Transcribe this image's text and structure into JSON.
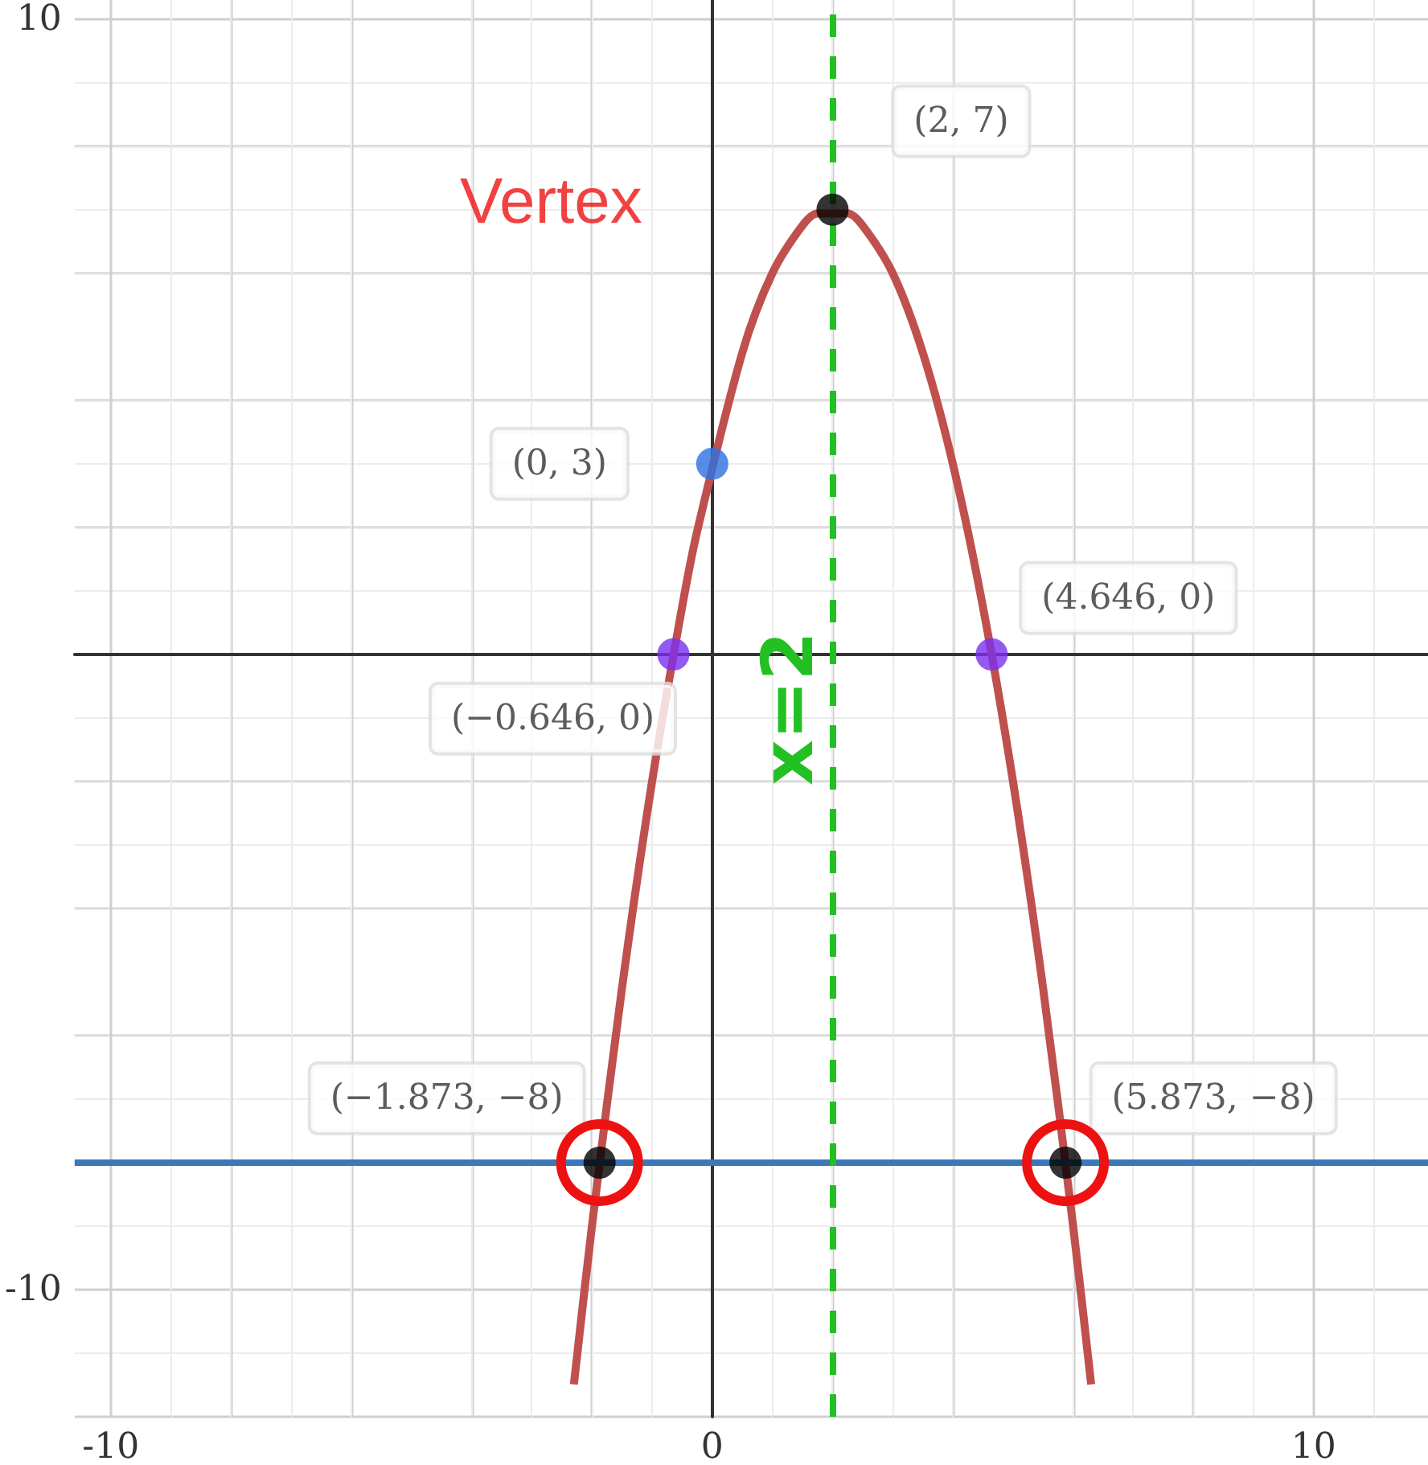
{
  "chart_data": {
    "type": "line",
    "xlim": [
      -10.6,
      11.9
    ],
    "ylim": [
      -12,
      10.3
    ],
    "xticks": [
      {
        "value": -10,
        "label": "-10"
      },
      {
        "value": -8,
        "label": null
      },
      {
        "value": -6,
        "label": null
      },
      {
        "value": -4,
        "label": null
      },
      {
        "value": -2,
        "label": null
      },
      {
        "value": 0,
        "label": "0"
      },
      {
        "value": 2,
        "label": null
      },
      {
        "value": 4,
        "label": null
      },
      {
        "value": 6,
        "label": null
      },
      {
        "value": 8,
        "label": null
      },
      {
        "value": 10,
        "label": "10"
      }
    ],
    "yticks": [
      {
        "value": -12,
        "label": null
      },
      {
        "value": -10,
        "label": "-10"
      },
      {
        "value": -8,
        "label": null
      },
      {
        "value": -6,
        "label": null
      },
      {
        "value": -4,
        "label": null
      },
      {
        "value": -2,
        "label": null
      },
      {
        "value": 0,
        "label": null
      },
      {
        "value": 2,
        "label": null
      },
      {
        "value": 4,
        "label": null
      },
      {
        "value": 6,
        "label": null
      },
      {
        "value": 8,
        "label": null
      },
      {
        "value": 10,
        "label": "10"
      }
    ],
    "grid": true,
    "series": [
      {
        "color": "#c0504d",
        "marker": "none",
        "x": [
          -2.3,
          -2,
          -1.5,
          -1,
          -0.5,
          -0.25,
          0.5,
          1,
          1.5,
          1.75,
          2.25,
          2.5,
          3,
          3.5,
          4,
          4.5,
          5,
          5.5,
          6,
          6.3
        ],
        "values": [
          -11.49,
          -9,
          -5.25,
          -2,
          0.75,
          1.94,
          4.75,
          6,
          6.75,
          6.94,
          6.94,
          6.75,
          6,
          4.75,
          3,
          0.75,
          -2,
          -5.25,
          -9,
          -11.49
        ]
      },
      {
        "type": "scatter",
        "marker": "circle",
        "x": [
          2,
          0,
          -0.646,
          4.646,
          -1.873,
          5.873
        ],
        "values": [
          7,
          3,
          0,
          0,
          -8,
          -8
        ],
        "colors": [
          "#000000",
          "#2d70e0",
          "#7b2ff0",
          "#7b2ff0",
          "#000000",
          "#000000"
        ]
      }
    ],
    "ref_lines": [
      {
        "axis": "y",
        "value": -8,
        "color": "#3a78b8",
        "line_style": "solid"
      },
      {
        "axis": "x",
        "value": 2,
        "label": "x=2",
        "color": "#22c022",
        "line_style": "dashed"
      }
    ],
    "annotations": [
      {
        "text": "(2, 7)",
        "x": 2,
        "y": 7
      },
      {
        "text": "(0, 3)",
        "x": 0,
        "y": 3
      },
      {
        "text": "(−0.646, 0)",
        "x": -0.646,
        "y": 0
      },
      {
        "text": "(4.646, 0)",
        "x": 4.646,
        "y": 0
      },
      {
        "text": "(−1.873, −8)",
        "x": -1.873,
        "y": -8
      },
      {
        "text": "(5.873, −8)",
        "x": 5.873,
        "y": -8
      },
      {
        "text": "Vertex",
        "x": 2,
        "y": 7
      }
    ]
  }
}
